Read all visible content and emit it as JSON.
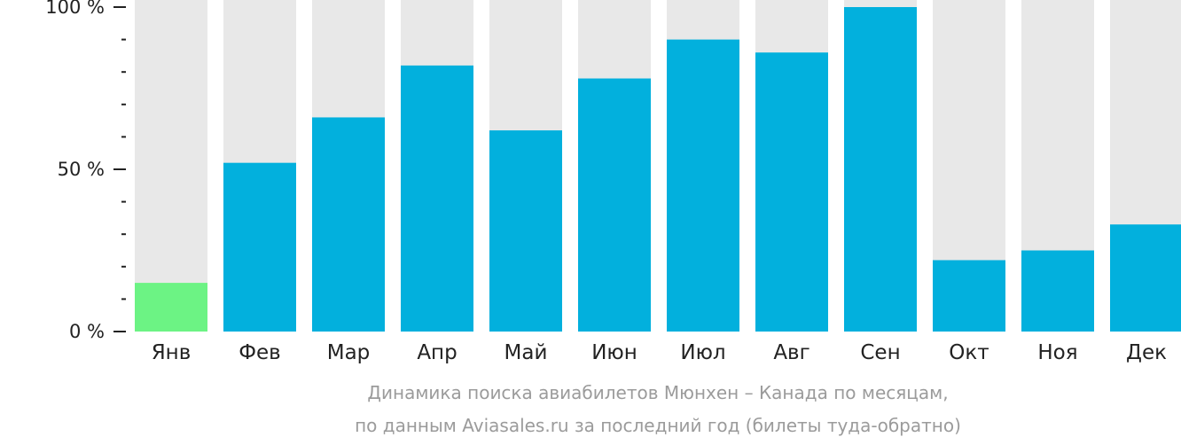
{
  "chart_data": {
    "type": "bar",
    "categories": [
      "Янв",
      "Фев",
      "Мар",
      "Апр",
      "Май",
      "Июн",
      "Июл",
      "Авг",
      "Сен",
      "Окт",
      "Ноя",
      "Дек"
    ],
    "values": [
      15,
      52,
      66,
      82,
      62,
      78,
      90,
      86,
      100,
      22,
      25,
      33
    ],
    "highlight_index": 0,
    "ylim": [
      0,
      100
    ],
    "yticks": [
      {
        "value": 0,
        "label": "0 %"
      },
      {
        "value": 50,
        "label": "50 %"
      },
      {
        "value": 100,
        "label": "100 %"
      }
    ],
    "minor_tick_step": 10,
    "grid": false,
    "colors": {
      "bar": "#02b0dd",
      "highlight": "#6cf384",
      "track": "#e8e8e8",
      "axis": "#222222"
    }
  },
  "caption": {
    "line1": "Динамика поиска авиабилетов Мюнхен – Канада по месяцам,",
    "line2": "по данным Aviasales.ru за последний год (билеты туда-обратно)"
  }
}
